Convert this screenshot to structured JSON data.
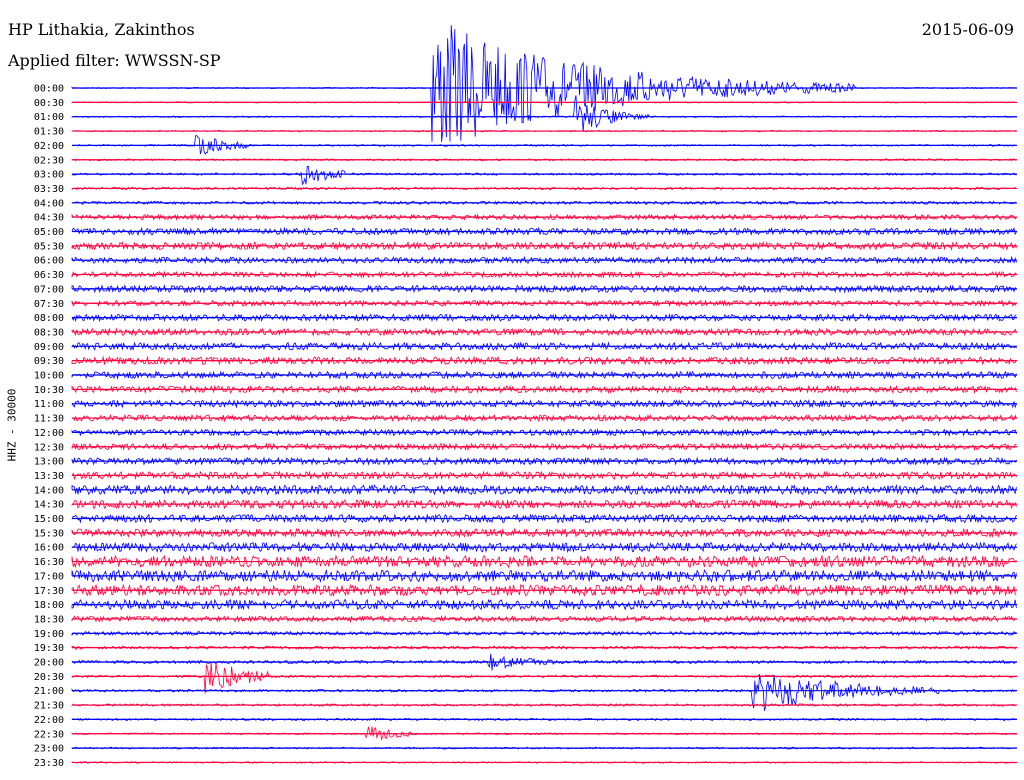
{
  "header": {
    "station": "HP Lithakia, Zakinthos",
    "filter": "Applied filter: WWSSN-SP",
    "date": "2015-06-09"
  },
  "chart_data": {
    "type": "line",
    "title": "HP Lithakia, Zakinthos",
    "subtitle": "Applied filter: WWSSN-SP",
    "ylabel": "HHZ - 30000",
    "xlabel": "",
    "grid": false,
    "series_colors": [
      "#0000ff",
      "#ff0040"
    ],
    "trace_labels": [
      "00:00",
      "00:30",
      "01:00",
      "01:30",
      "02:00",
      "02:30",
      "03:00",
      "03:30",
      "04:00",
      "04:30",
      "05:00",
      "05:30",
      "06:00",
      "06:30",
      "07:00",
      "07:30",
      "08:00",
      "08:30",
      "09:00",
      "09:30",
      "10:00",
      "10:30",
      "11:00",
      "11:30",
      "12:00",
      "12:30",
      "13:00",
      "13:30",
      "14:00",
      "14:30",
      "15:00",
      "15:30",
      "16:00",
      "16:30",
      "17:00",
      "17:30",
      "18:00",
      "18:30",
      "19:00",
      "19:30",
      "20:00",
      "20:30",
      "21:00",
      "21:30",
      "22:00",
      "22:30",
      "23:00",
      "23:30"
    ],
    "noise_level": [
      0.1,
      0.1,
      0.12,
      0.12,
      0.14,
      0.16,
      0.18,
      0.2,
      0.25,
      0.4,
      0.55,
      0.6,
      0.5,
      0.45,
      0.55,
      0.45,
      0.55,
      0.55,
      0.6,
      0.6,
      0.55,
      0.55,
      0.55,
      0.5,
      0.5,
      0.5,
      0.55,
      0.6,
      0.75,
      0.7,
      0.65,
      0.65,
      0.75,
      0.95,
      0.95,
      0.9,
      0.8,
      0.45,
      0.3,
      0.25,
      0.25,
      0.2,
      0.2,
      0.2,
      0.18,
      0.15,
      0.15,
      0.12
    ],
    "events": [
      {
        "trace": 0,
        "x": 0.38,
        "amp": 12,
        "decay": 0.15,
        "duration": 0.45
      },
      {
        "trace": 2,
        "x": 0.53,
        "amp": 4,
        "decay": 0.03,
        "duration": 0.08
      },
      {
        "trace": 4,
        "x": 0.13,
        "amp": 2,
        "decay": 0.03,
        "duration": 0.06
      },
      {
        "trace": 6,
        "x": 0.24,
        "amp": 2,
        "decay": 0.03,
        "duration": 0.05
      },
      {
        "trace": 40,
        "x": 0.44,
        "amp": 1.5,
        "decay": 0.03,
        "duration": 0.07
      },
      {
        "trace": 41,
        "x": 0.14,
        "amp": 3,
        "decay": 0.04,
        "duration": 0.07
      },
      {
        "trace": 42,
        "x": 0.72,
        "amp": 4,
        "decay": 0.08,
        "duration": 0.2
      },
      {
        "trace": 45,
        "x": 0.31,
        "amp": 1.5,
        "decay": 0.03,
        "duration": 0.05
      }
    ]
  }
}
